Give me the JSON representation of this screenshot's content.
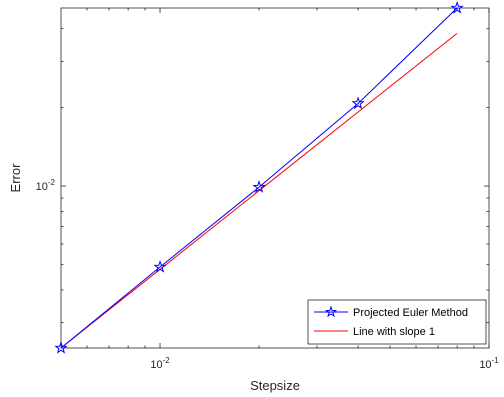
{
  "chart_data": {
    "type": "line",
    "xscale": "log",
    "yscale": "log",
    "xlabel": "Stepsize",
    "ylabel": "Error",
    "xlim": [
      0.005,
      0.1
    ],
    "ylim": [
      0.0024,
      0.048
    ],
    "grid": false,
    "box": true,
    "x_ticks": [
      {
        "value": 0.01,
        "base": "10",
        "exp": "-2"
      },
      {
        "value": 0.1,
        "base": "10",
        "exp": "-1"
      }
    ],
    "y_ticks": [
      {
        "value": 0.01,
        "base": "10",
        "exp": "-2"
      }
    ],
    "series": [
      {
        "name": "Projected Euler Method",
        "color": "#0000ff",
        "marker": "star",
        "x": [
          0.005,
          0.01,
          0.02,
          0.04,
          0.08
        ],
        "y": [
          0.0024,
          0.0049,
          0.0099,
          0.0207,
          0.048
        ]
      },
      {
        "name": "Line with slope 1",
        "color": "#ff0000",
        "marker": "none",
        "x": [
          0.005,
          0.08
        ],
        "y": [
          0.0024,
          0.0384
        ]
      }
    ],
    "legend": {
      "location": "bottom-right"
    }
  }
}
